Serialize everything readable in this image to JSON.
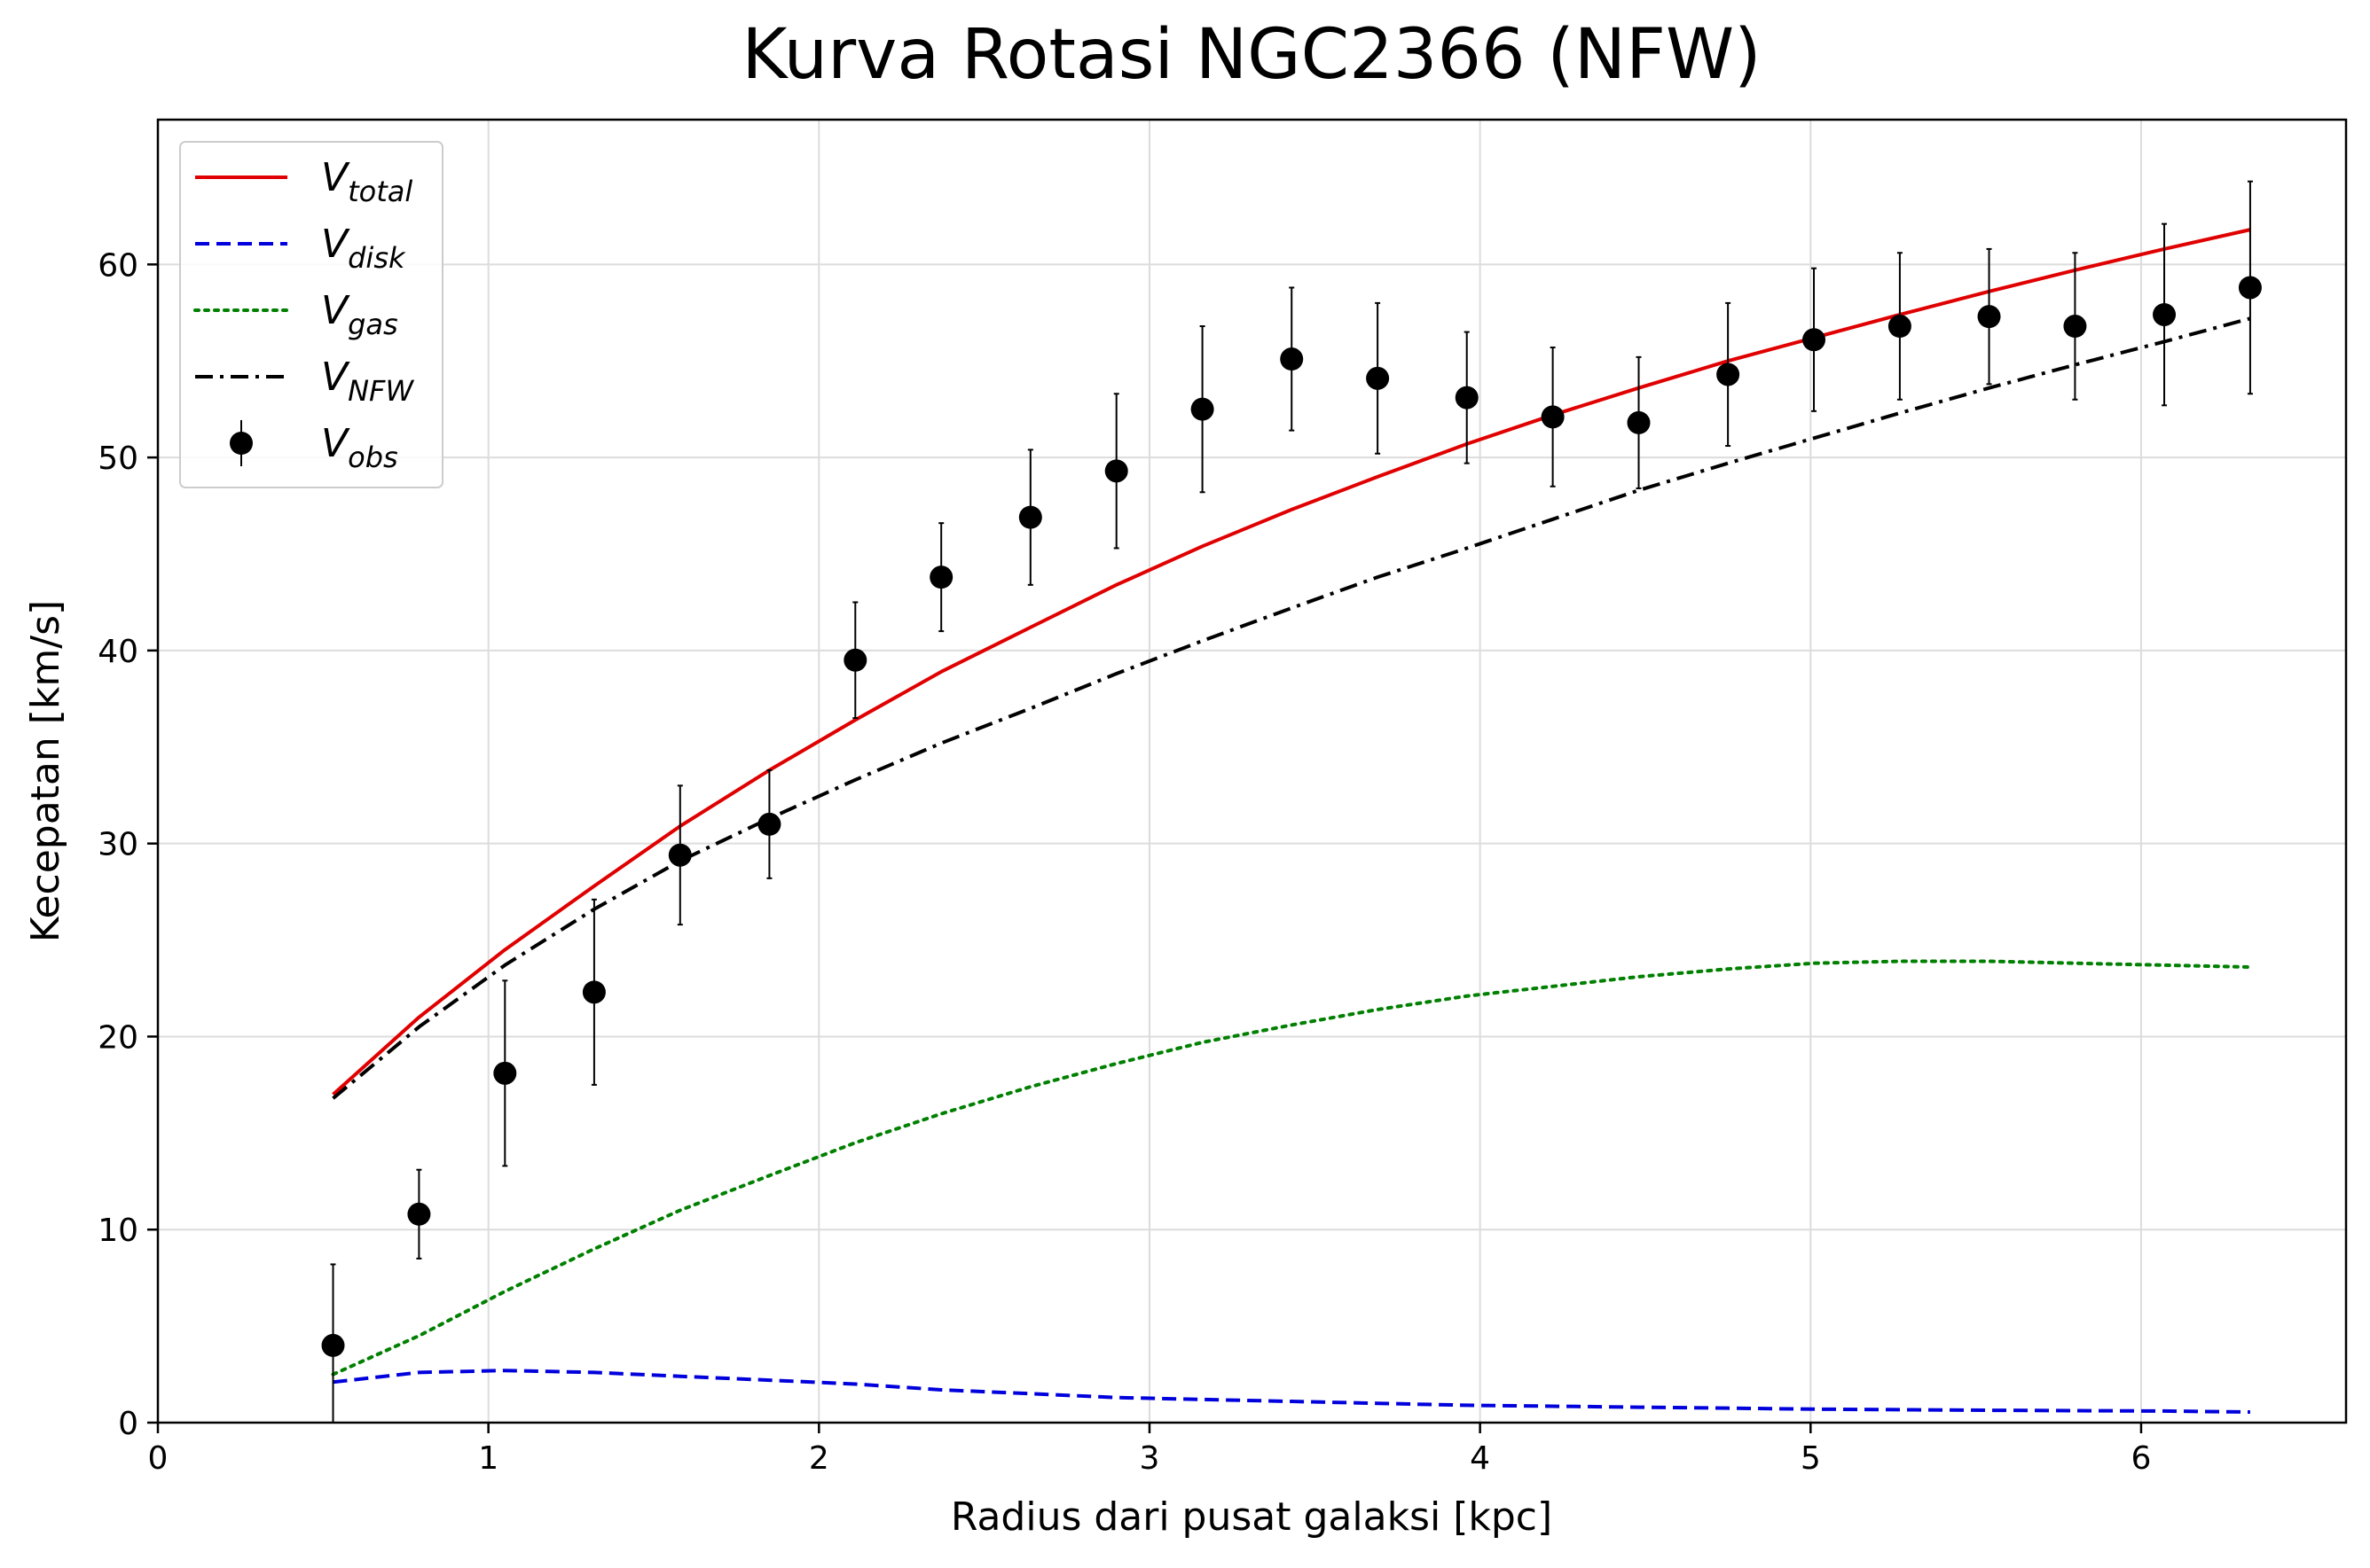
{
  "chart_data": {
    "type": "line",
    "title": "Kurva Rotasi NGC2366 (NFW)",
    "xlabel": "Radius dari pusat galaksi [kpc]",
    "ylabel": "Kecepatan [km/s]",
    "xlim": [
      0,
      6.62
    ],
    "ylim": [
      0,
      67.5
    ],
    "xticks": [
      0,
      1,
      2,
      3,
      4,
      5,
      6
    ],
    "yticks": [
      0,
      10,
      20,
      30,
      40,
      50,
      60
    ],
    "grid": true,
    "legend_position": "top-left",
    "x": [
      0.53,
      0.79,
      1.05,
      1.32,
      1.58,
      1.85,
      2.11,
      2.37,
      2.64,
      2.9,
      3.16,
      3.43,
      3.69,
      3.96,
      4.22,
      4.48,
      4.75,
      5.01,
      5.27,
      5.54,
      5.8,
      6.07,
      6.33
    ],
    "series": [
      {
        "name": "V",
        "sub": "total",
        "color": "#e00000",
        "style": "solid",
        "values": [
          17.0,
          21.0,
          24.5,
          27.8,
          30.9,
          33.8,
          36.4,
          38.9,
          41.2,
          43.4,
          45.4,
          47.3,
          49.0,
          50.7,
          52.2,
          53.6,
          55.0,
          56.2,
          57.4,
          58.6,
          59.7,
          60.8,
          61.8
        ]
      },
      {
        "name": "V",
        "sub": "disk",
        "color": "#0000dd",
        "style": "dashed",
        "values": [
          2.1,
          2.6,
          2.7,
          2.6,
          2.4,
          2.2,
          2.0,
          1.7,
          1.5,
          1.3,
          1.2,
          1.1,
          1.0,
          0.9,
          0.85,
          0.8,
          0.75,
          0.7,
          0.67,
          0.64,
          0.62,
          0.6,
          0.55
        ]
      },
      {
        "name": "V",
        "sub": "gas",
        "color": "#008000",
        "style": "dotted",
        "values": [
          2.5,
          4.5,
          6.8,
          9.0,
          11.0,
          12.8,
          14.5,
          16.0,
          17.4,
          18.6,
          19.7,
          20.6,
          21.4,
          22.1,
          22.6,
          23.1,
          23.5,
          23.8,
          23.9,
          23.9,
          23.8,
          23.7,
          23.6
        ]
      },
      {
        "name": "V",
        "sub": "NFW",
        "color": "#000000",
        "style": "dashdot",
        "values": [
          16.8,
          20.5,
          23.7,
          26.6,
          29.1,
          31.3,
          33.3,
          35.2,
          37.0,
          38.8,
          40.5,
          42.2,
          43.8,
          45.3,
          46.8,
          48.3,
          49.7,
          51.0,
          52.3,
          53.6,
          54.8,
          56.0,
          57.2
        ]
      }
    ],
    "observed": {
      "name": "V",
      "sub": "obs",
      "color": "#000000",
      "values": [
        4.0,
        10.8,
        18.1,
        22.3,
        29.4,
        31.0,
        39.5,
        43.8,
        46.9,
        49.3,
        52.5,
        55.1,
        54.1,
        53.1,
        52.1,
        51.8,
        54.3,
        56.1,
        56.8,
        57.3,
        56.8,
        57.4,
        58.8
      ],
      "errors": [
        4.2,
        2.3,
        4.8,
        4.8,
        3.6,
        2.8,
        3.0,
        2.8,
        3.5,
        4.0,
        4.3,
        3.7,
        3.9,
        3.4,
        3.6,
        3.4,
        3.7,
        3.7,
        3.8,
        3.5,
        3.8,
        4.7,
        5.5
      ]
    }
  }
}
